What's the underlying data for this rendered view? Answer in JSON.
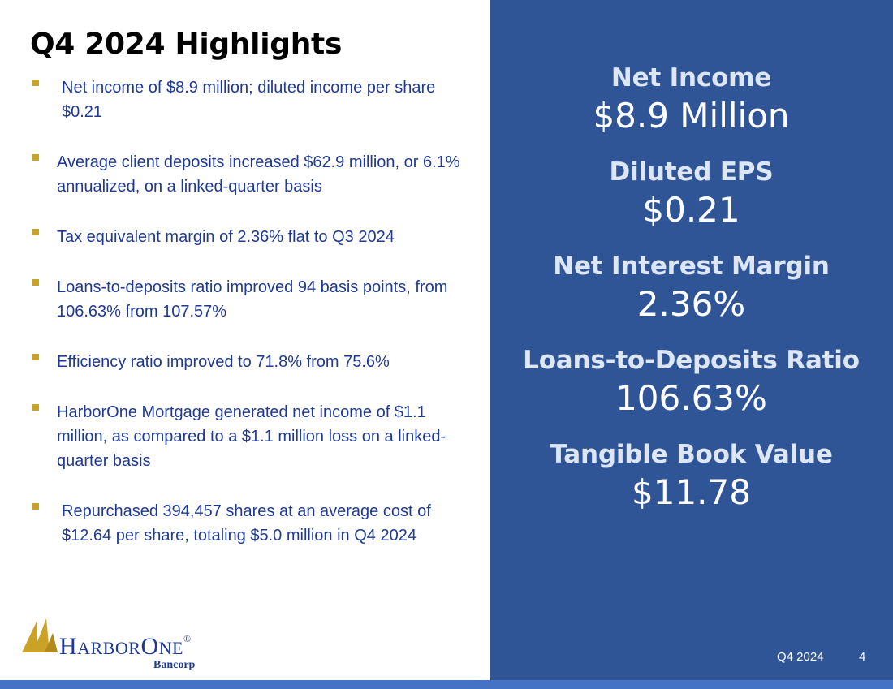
{
  "slide": {
    "title": "Q4 2024 Highlights",
    "footer_period": "Q4 2024",
    "page_number": "4"
  },
  "bullets": [
    "Net income of $8.9 million; diluted income per share $0.21",
    "Average client deposits increased $62.9 million, or 6.1% annualized, on a linked-quarter basis",
    "Tax equivalent margin of 2.36% flat to Q3 2024",
    "Loans-to-deposits ratio improved 94 basis points, from 106.63% from 107.57%",
    "Efficiency ratio improved to 71.8% from 75.6%",
    "HarborOne Mortgage generated net income of $1.1 million, as compared to a $1.1 million loss on a linked-quarter basis",
    "Repurchased 394,457 shares at an average cost of $12.64 per share, totaling $5.0 million in Q4 2024"
  ],
  "metrics": [
    {
      "label": "Net Income",
      "value": "$8.9 Million"
    },
    {
      "label": "Diluted EPS",
      "value": "$0.21"
    },
    {
      "label": "Net Interest Margin",
      "value": "2.36%"
    },
    {
      "label": "Loans-to-Deposits Ratio",
      "value": "106.63%"
    },
    {
      "label": "Tangible Book Value",
      "value": "$11.78"
    }
  ],
  "logo": {
    "name_part1_cap": "H",
    "name_part1_rest": "ARBOR",
    "name_part2_cap": "O",
    "name_part2_rest": "NE",
    "registered": "®",
    "subtitle": "Bancorp"
  },
  "colors": {
    "panel": "#2f5597",
    "bar": "#4472c4",
    "bullet_text": "#1f3a93",
    "bullet_marker": "#c9a227",
    "logo_gold": "#c9a227"
  }
}
